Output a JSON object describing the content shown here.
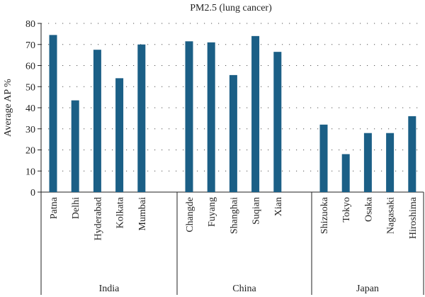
{
  "chart_data": {
    "type": "bar",
    "title": "PM2.5 (lung cancer)",
    "ylabel": "Average AP %",
    "xlabel": "",
    "ylim": [
      0,
      80
    ],
    "yticks": [
      0,
      10,
      20,
      30,
      40,
      50,
      60,
      70,
      80
    ],
    "grid": true,
    "bar_color": "#1b5f86",
    "groups": [
      {
        "name": "India",
        "categories": [
          "Patna",
          "Delhi",
          "Hyderabad",
          "Kolkata",
          "Mumbai"
        ],
        "values": [
          74.5,
          43.5,
          67.5,
          54,
          70
        ]
      },
      {
        "name": "China",
        "categories": [
          "Changde",
          "Fuyang",
          "Shanghai",
          "Suqian",
          "Xian"
        ],
        "values": [
          71.5,
          71,
          55.5,
          74,
          66.5
        ]
      },
      {
        "name": "Japan",
        "categories": [
          "Shizuoka",
          "Tokyo",
          "Osaka",
          "Nagasaki",
          "Hiroshima"
        ],
        "values": [
          32,
          18,
          28,
          28,
          36
        ]
      }
    ]
  }
}
